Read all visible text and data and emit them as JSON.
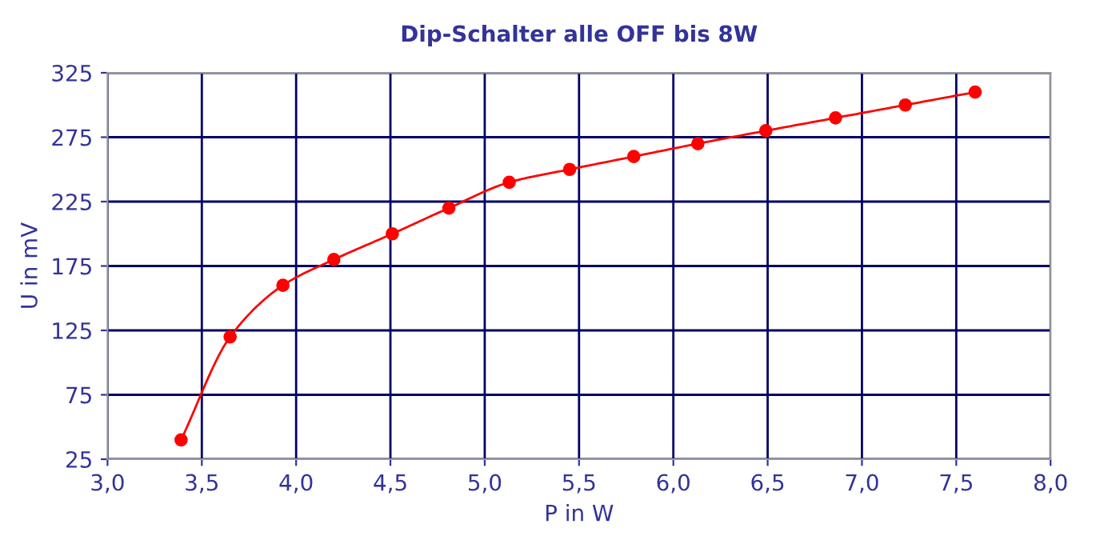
{
  "chart_data": {
    "type": "line",
    "title": "Dip-Schalter alle OFF bis 8W",
    "xlabel": "P in W",
    "ylabel": "U in mV",
    "x": [
      3.39,
      3.65,
      3.93,
      4.2,
      4.51,
      4.81,
      5.13,
      5.45,
      5.79,
      6.13,
      6.49,
      6.86,
      7.23,
      7.6
    ],
    "series": [
      {
        "color": "#ff0000",
        "values": [
          40,
          120,
          160,
          180,
          200,
          220,
          240,
          250,
          260,
          270,
          280,
          290,
          300,
          310
        ]
      }
    ],
    "xlim": [
      3.0,
      8.0
    ],
    "ylim": [
      25,
      325
    ],
    "xticks": [
      {
        "value": 3.0,
        "label": "3,0"
      },
      {
        "value": 3.5,
        "label": "3,5"
      },
      {
        "value": 4.0,
        "label": "4,0"
      },
      {
        "value": 4.5,
        "label": "4,5"
      },
      {
        "value": 5.0,
        "label": "5,0"
      },
      {
        "value": 5.5,
        "label": "5,5"
      },
      {
        "value": 6.0,
        "label": "6,0"
      },
      {
        "value": 6.5,
        "label": "6,5"
      },
      {
        "value": 7.0,
        "label": "7,0"
      },
      {
        "value": 7.5,
        "label": "7,5"
      },
      {
        "value": 8.0,
        "label": "8,0"
      }
    ],
    "yticks": [
      25,
      75,
      125,
      175,
      225,
      275,
      325
    ],
    "grid": true,
    "marker": "circle",
    "line_style": "solid",
    "legend": false
  }
}
